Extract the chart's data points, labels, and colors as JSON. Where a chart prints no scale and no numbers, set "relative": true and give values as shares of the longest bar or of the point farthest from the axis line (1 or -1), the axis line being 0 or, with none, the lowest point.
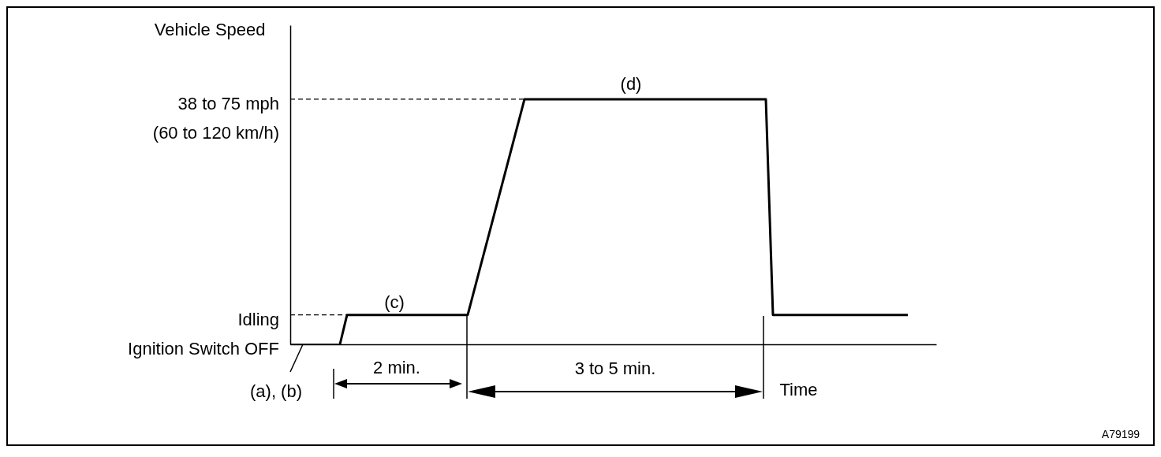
{
  "chart_data": {
    "type": "line",
    "xlabel": "Time",
    "ylabel": "Vehicle Speed",
    "relative": true,
    "categories": [
      null,
      null,
      null,
      null,
      null,
      null,
      null,
      null,
      null,
      null,
      null,
      null,
      null,
      null,
      null,
      null,
      null,
      null,
      null,
      null,
      null,
      null,
      null,
      null,
      null,
      null,
      null,
      null,
      null,
      null,
      null,
      null,
      null,
      null,
      null,
      null,
      null,
      null,
      null,
      null,
      null,
      null,
      null,
      null,
      null,
      null,
      null,
      null,
      null,
      null,
      null,
      null,
      null,
      null,
      null,
      null,
      null,
      null,
      null,
      null,
      null,
      null,
      null,
      null,
      null,
      null,
      null,
      null,
      null,
      null,
      null,
      null,
      null,
      null,
      null,
      null,
      null,
      null,
      null,
      null,
      null,
      null,
      null,
      null,
      null,
      null,
      null,
      null,
      null,
      null,
      null,
      null
    ],
    "series": [
      {
        "color": "#000000",
        "values": [
          null,
          null,
          null,
          null,
          null,
          null,
          null,
          0,
          0.12,
          0.12,
          0.12,
          0.12,
          0.12,
          0.12,
          0.12,
          0.12,
          0.12,
          0.12,
          0.12,
          0.12,
          0.12,
          0.12,
          0.12,
          0.12,
          0.12,
          0.12,
          0.23,
          0.34,
          0.45,
          0.56,
          0.67,
          0.78,
          0.89,
          1,
          1,
          1,
          1,
          1,
          1,
          1,
          1,
          1,
          1,
          1,
          1,
          1,
          1,
          1,
          1,
          1,
          1,
          1,
          1,
          1,
          1,
          1,
          1,
          1,
          1,
          1,
          1,
          1,
          1,
          1,
          1,
          1,
          1,
          1,
          0.12,
          0.12,
          0.12,
          0.12,
          0.12,
          0.12,
          0.12,
          0.12,
          0.12,
          0.12,
          0.12,
          0.12,
          0.12,
          0.12,
          0.12,
          0.12,
          0.12,
          0.12,
          0.12,
          0.12,
          null,
          null,
          null,
          null
        ]
      }
    ],
    "ref_lines": [
      {
        "axis": "y",
        "value": 1,
        "label": "38 to 75 mph\n(60 to 120 km/h)",
        "line_style": "dashed"
      },
      {
        "axis": "y",
        "value": 0.12,
        "label": "Idling",
        "line_style": "dashed"
      },
      {
        "axis": "y",
        "value": 0,
        "label": "Ignition Switch OFF",
        "line_style": "solid"
      }
    ],
    "annotations": [
      "(c)",
      "(d)",
      "2 min.",
      "3 to 5 min.",
      "(a), (b)",
      "A79199"
    ],
    "marker": "none",
    "line_style": "solid"
  }
}
